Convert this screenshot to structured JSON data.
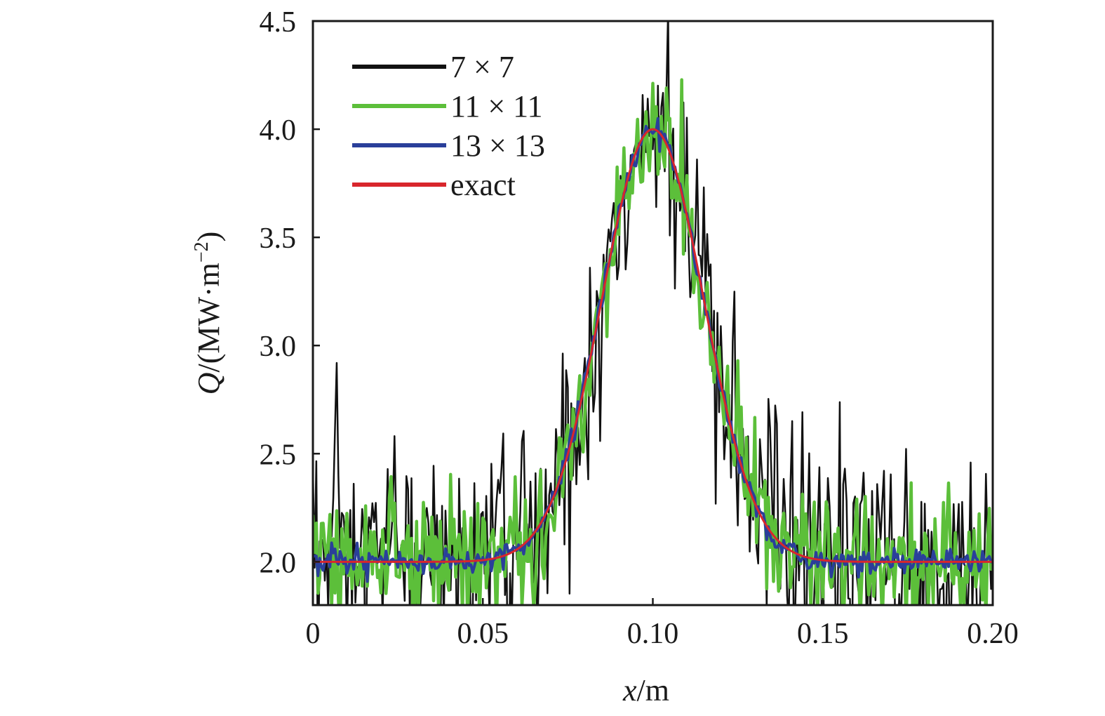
{
  "chart_data": {
    "type": "line",
    "title": "",
    "xlabel": {
      "var": "x",
      "unit": "/m"
    },
    "ylabel": {
      "var": "Q",
      "unit": "/(MW·m",
      "sup": "−2",
      "close": ")"
    },
    "xlim": [
      0,
      0.2
    ],
    "ylim": [
      1.8,
      4.5
    ],
    "xticks": [
      0,
      0.05,
      0.1,
      0.15,
      0.2
    ],
    "xtick_labels": [
      "0",
      "0.05",
      "0.10",
      "0.15",
      "0.20"
    ],
    "yticks": [
      2.0,
      2.5,
      3.0,
      3.5,
      4.0,
      4.5
    ],
    "ytick_labels": [
      "2.0",
      "2.5",
      "3.0",
      "3.5",
      "4.0",
      "4.5"
    ],
    "grid": false,
    "legend_position": "top-left",
    "exact_function": {
      "baseline": 2.0,
      "amplitude": 2.0,
      "center": 0.1,
      "sigma": 0.015
    },
    "series": [
      {
        "name": "7 × 7",
        "color": "#111111",
        "noise_amplitude": 0.3
      },
      {
        "name": "11 × 11",
        "color": "#5cbf3a",
        "noise_amplitude": 0.15
      },
      {
        "name": "13 × 13",
        "color": "#2a3f9a",
        "noise_amplitude": 0.03
      },
      {
        "name": "exact",
        "color": "#d8262c",
        "noise_amplitude": 0
      }
    ]
  }
}
